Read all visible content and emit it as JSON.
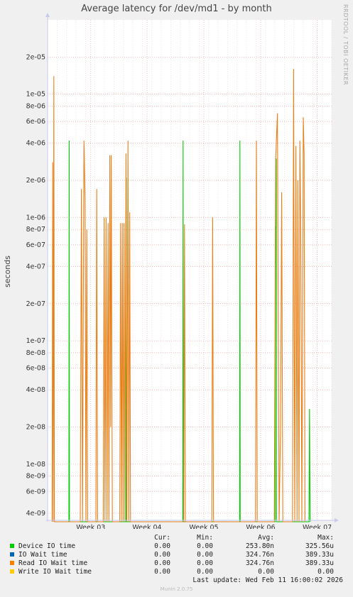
{
  "title": "Average latency for /dev/md1 - by month",
  "ylabel": "seconds",
  "watermark": "RRDTOOL / TOBI OETIKER",
  "legend": {
    "headers": {
      "cur": "Cur:",
      "min": "Min:",
      "avg": "Avg:",
      "max": "Max:"
    },
    "rows": [
      {
        "name": "Device IO time",
        "color": "#00cc00",
        "cur": "0.00",
        "min": "0.00",
        "avg": "253.80n",
        "max": "325.56u"
      },
      {
        "name": "IO Wait time",
        "color": "#0066b3",
        "cur": "0.00",
        "min": "0.00",
        "avg": "324.76n",
        "max": "389.33u"
      },
      {
        "name": "Read IO Wait time",
        "color": "#ff8000",
        "cur": "0.00",
        "min": "0.00",
        "avg": "324.76n",
        "max": "389.33u"
      },
      {
        "name": "Write IO Wait time",
        "color": "#ffcc00",
        "cur": "0.00",
        "min": "0.00",
        "avg": "0.00",
        "max": "0.00"
      }
    ]
  },
  "last_update": "Last update: Wed Feb 11 16:00:02 2026",
  "munin_version": "Munin 2.0.75",
  "chart_data": {
    "type": "line",
    "y_scale": "log",
    "ylim": [
      3.5e-09,
      4e-05
    ],
    "y_ticks": [
      {
        "v": 4e-09,
        "label": "4e-09"
      },
      {
        "v": 6e-09,
        "label": "6e-09"
      },
      {
        "v": 8e-09,
        "label": "8e-09"
      },
      {
        "v": 1e-08,
        "label": "1e-08"
      },
      {
        "v": 2e-08,
        "label": "2e-08"
      },
      {
        "v": 4e-08,
        "label": "4e-08"
      },
      {
        "v": 6e-08,
        "label": "6e-08"
      },
      {
        "v": 8e-08,
        "label": "8e-08"
      },
      {
        "v": 1e-07,
        "label": "1e-07"
      },
      {
        "v": 2e-07,
        "label": "2e-07"
      },
      {
        "v": 4e-07,
        "label": "4e-07"
      },
      {
        "v": 6e-07,
        "label": "6e-07"
      },
      {
        "v": 8e-07,
        "label": "8e-07"
      },
      {
        "v": 1e-06,
        "label": "1e-06"
      },
      {
        "v": 2e-06,
        "label": "2e-06"
      },
      {
        "v": 4e-06,
        "label": "4e-06"
      },
      {
        "v": 6e-06,
        "label": "6e-06"
      },
      {
        "v": 8e-06,
        "label": "8e-06"
      },
      {
        "v": 1e-05,
        "label": "1e-05"
      },
      {
        "v": 2e-05,
        "label": "2e-05"
      }
    ],
    "xlim": [
      0,
      100
    ],
    "x_ticks": [
      {
        "x": 15.2,
        "label": "Week 03"
      },
      {
        "x": 35.0,
        "label": "Week 04"
      },
      {
        "x": 55.0,
        "label": "Week 05"
      },
      {
        "x": 75.0,
        "label": "Week 06"
      },
      {
        "x": 94.9,
        "label": "Week 07"
      }
    ],
    "series": [
      {
        "name": "Device IO time",
        "color": "#00cc00",
        "points": [
          [
            7.5,
            0
          ],
          [
            7.6,
            4.2e-06
          ],
          [
            7.7,
            0
          ],
          [
            27.6,
            0
          ],
          [
            27.7,
            2.1e-06
          ],
          [
            27.8,
            0
          ],
          [
            47.6,
            0
          ],
          [
            47.7,
            4.2e-06
          ],
          [
            47.8,
            0
          ],
          [
            67.6,
            0
          ],
          [
            67.7,
            4.2e-06
          ],
          [
            67.8,
            0
          ],
          [
            80.1,
            0
          ],
          [
            80.2,
            8.5e-07
          ],
          [
            80.4,
            8e-07
          ],
          [
            80.5,
            3e-06
          ],
          [
            80.6,
            0
          ],
          [
            92.0,
            0
          ],
          [
            92.2,
            2.8e-08
          ],
          [
            92.4,
            0
          ]
        ]
      },
      {
        "name": "Read IO Wait time",
        "color": "#e8801a",
        "points": [
          [
            1.6,
            0
          ],
          [
            1.8,
            2.8e-06
          ],
          [
            2.0,
            0
          ],
          [
            2.2,
            1.4e-05
          ],
          [
            2.4,
            0
          ],
          [
            2.5,
            3e-09
          ],
          [
            11.5,
            0
          ],
          [
            11.9,
            1.7e-06
          ],
          [
            12.3,
            0
          ],
          [
            12.8,
            4.2e-06
          ],
          [
            13.2,
            1.4e-06
          ],
          [
            13.5,
            0
          ],
          [
            13.8,
            8e-07
          ],
          [
            14.1,
            0
          ],
          [
            17.0,
            0
          ],
          [
            17.3,
            1.7e-06
          ],
          [
            17.6,
            0
          ],
          [
            19.6,
            0
          ],
          [
            19.9,
            1e-06
          ],
          [
            20.2,
            0
          ],
          [
            20.6,
            1e-06
          ],
          [
            20.9,
            0
          ],
          [
            21.3,
            9e-07
          ],
          [
            21.6,
            0
          ],
          [
            21.9,
            3.2e-06
          ],
          [
            22.2,
            2e-08
          ],
          [
            22.4,
            3.2e-06
          ],
          [
            22.8,
            0
          ],
          [
            25.4,
            0
          ],
          [
            25.7,
            9e-07
          ],
          [
            26.0,
            0
          ],
          [
            26.3,
            9e-07
          ],
          [
            26.6,
            0
          ],
          [
            26.9,
            9e-07
          ],
          [
            27.2,
            0
          ],
          [
            27.6,
            3.3e-06
          ],
          [
            27.9,
            0
          ],
          [
            28.3,
            4.2e-06
          ],
          [
            28.6,
            0
          ],
          [
            28.9,
            1.1e-06
          ],
          [
            29.2,
            0
          ],
          [
            47.9,
            0
          ],
          [
            48.2,
            8.8e-07
          ],
          [
            48.5,
            0
          ],
          [
            57.8,
            0
          ],
          [
            58.1,
            1e-06
          ],
          [
            58.4,
            0
          ],
          [
            73.2,
            0
          ],
          [
            73.5,
            4.2e-06
          ],
          [
            73.8,
            0
          ],
          [
            79.8,
            0
          ],
          [
            80.3,
            3e-06
          ],
          [
            80.9,
            7e-06
          ],
          [
            81.5,
            0
          ],
          [
            82.0,
            2e-08
          ],
          [
            82.4,
            1.6e-06
          ],
          [
            82.8,
            0
          ],
          [
            86.2,
            0
          ],
          [
            86.6,
            1.6e-05
          ],
          [
            87.0,
            0
          ],
          [
            87.4,
            3.8e-06
          ],
          [
            87.8,
            0
          ],
          [
            88.1,
            2e-06
          ],
          [
            88.5,
            0
          ],
          [
            88.8,
            4.2e-06
          ],
          [
            89.1,
            9e-07
          ],
          [
            89.5,
            0
          ],
          [
            90.0,
            6.5e-06
          ],
          [
            90.3,
            3.2e-06
          ],
          [
            90.6,
            0
          ]
        ]
      }
    ]
  }
}
